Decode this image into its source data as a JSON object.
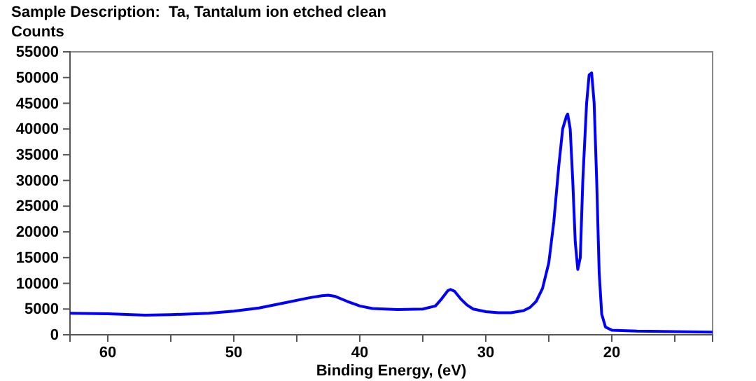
{
  "chart_data": {
    "type": "line",
    "title": "Sample Description:  Ta, Tantalum ion etched clean",
    "ylabel": "Counts",
    "xlabel": "Binding Energy, (eV)",
    "xlim": [
      63,
      12
    ],
    "xticks": [
      60,
      {
        "value": 55,
        "label": null
      },
      50,
      {
        "value": 45,
        "label": null
      },
      40,
      {
        "value": 35,
        "label": null
      },
      30,
      {
        "value": 25,
        "label": null
      },
      20,
      {
        "value": 15,
        "label": null
      }
    ],
    "ylim": [
      0,
      55000
    ],
    "yticks": [
      0,
      5000,
      10000,
      15000,
      20000,
      25000,
      30000,
      35000,
      40000,
      45000,
      50000,
      55000
    ],
    "grid": false,
    "series": [
      {
        "color": "#0000ff",
        "x": [
          63,
          60,
          57,
          55,
          52,
          50,
          48,
          46,
          44,
          43,
          42.5,
          42,
          41,
          40,
          39,
          37,
          35,
          34,
          33.5,
          33,
          32.8,
          32.5,
          32,
          31.5,
          31,
          30,
          29,
          28,
          27,
          26.5,
          26,
          25.5,
          25,
          24.6,
          24.2,
          23.9,
          23.6,
          23.5,
          23.3,
          23.1,
          22.9,
          22.7,
          22.5,
          22.3,
          22,
          21.8,
          21.6,
          21.4,
          21.2,
          21,
          20.8,
          20.5,
          20,
          18,
          15,
          12
        ],
        "values": [
          4200,
          4100,
          3800,
          3900,
          4200,
          4600,
          5200,
          6200,
          7200,
          7600,
          7700,
          7500,
          6500,
          5600,
          5100,
          4900,
          5000,
          5600,
          7000,
          8600,
          8800,
          8500,
          7000,
          5800,
          5000,
          4500,
          4300,
          4300,
          4700,
          5300,
          6500,
          9000,
          14000,
          22000,
          33000,
          40000,
          42500,
          42900,
          40000,
          30000,
          18000,
          12700,
          15000,
          30000,
          45000,
          50500,
          50900,
          45000,
          30000,
          12000,
          4000,
          1500,
          900,
          700,
          600,
          500
        ]
      }
    ]
  }
}
